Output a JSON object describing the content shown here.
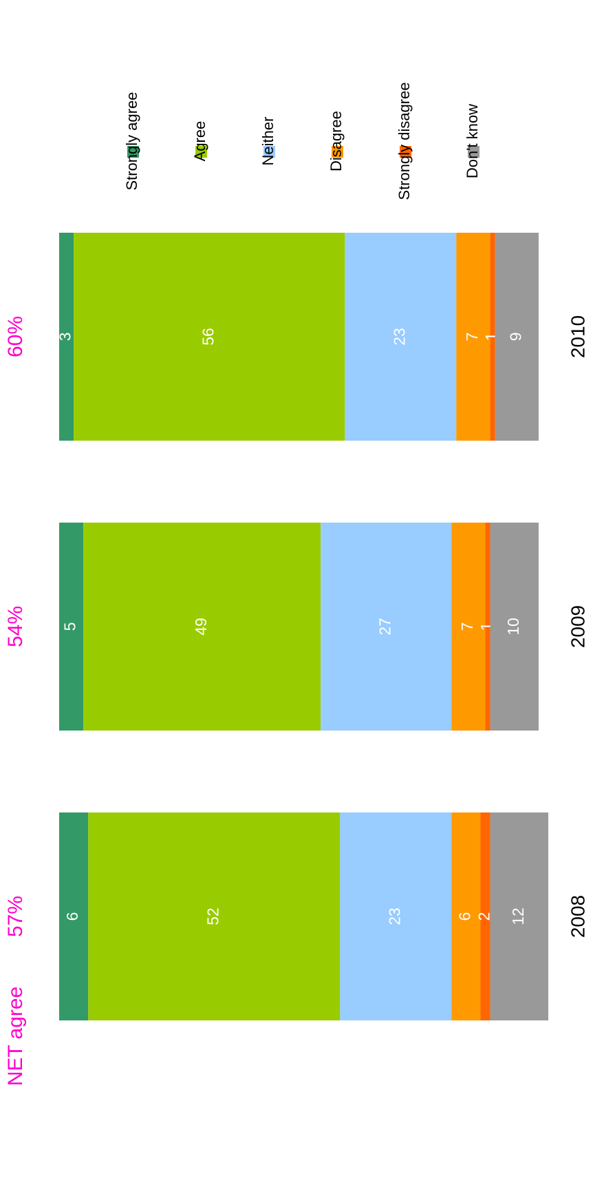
{
  "chart_data": {
    "type": "bar",
    "stacked": true,
    "title": "NET agree",
    "y_label": "%",
    "categories": [
      "2008",
      "2009",
      "2010"
    ],
    "totals": {
      "values": [
        57,
        54,
        60
      ],
      "value_labels": [
        "57%",
        "54%",
        "60%"
      ],
      "color": "#ff00cc"
    },
    "ylim": [
      0,
      100
    ],
    "series": [
      {
        "name": "Strongly agree",
        "color": "#339966",
        "values": [
          6,
          5,
          3
        ]
      },
      {
        "name": "Agree",
        "color": "#99cc00",
        "values": [
          52,
          49,
          56
        ]
      },
      {
        "name": "Neither",
        "color": "#99ccff",
        "values": [
          23,
          27,
          23
        ]
      },
      {
        "name": "Disagree",
        "color": "#ff9900",
        "values": [
          6,
          7,
          7
        ]
      },
      {
        "name": "Strongly disagree",
        "color": "#ff6600",
        "values": [
          2,
          1,
          1
        ]
      },
      {
        "name": "Don't know",
        "color": "#999999",
        "values": [
          12,
          10,
          9
        ]
      }
    ]
  }
}
